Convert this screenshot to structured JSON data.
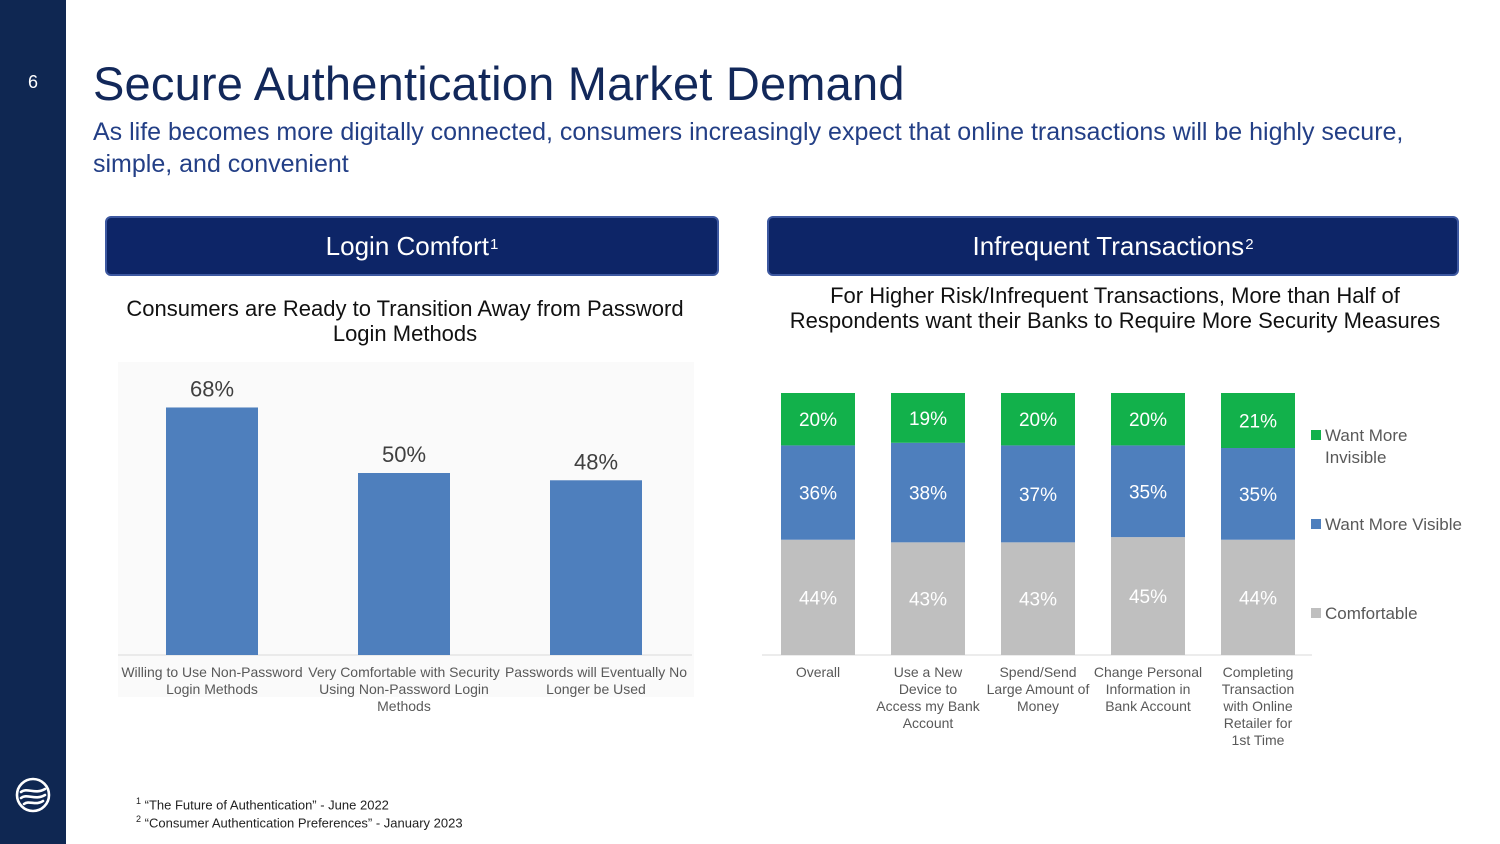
{
  "page_number": "6",
  "title": "Secure Authentication Market Demand",
  "subtitle": "As life becomes more digitally connected, consumers increasingly expect that online transactions will be highly secure, simple, and convenient",
  "left_panel": {
    "header": "Login Comfort",
    "header_sup": "1"
  },
  "right_panel": {
    "header": "Infrequent Transactions",
    "header_sup": "2"
  },
  "chart_data": [
    {
      "type": "bar",
      "title": "Consumers are Ready to Transition Away from Password Login Methods",
      "categories": [
        "Willing to Use Non-Password Login Methods",
        "Very Comfortable with Security Using Non-Password Login Methods",
        "Passwords will Eventually No Longer be Used"
      ],
      "values": [
        68,
        50,
        48
      ],
      "value_labels": [
        "68%",
        "50%",
        "48%"
      ],
      "ylim": [
        0,
        75
      ],
      "xlabel": "",
      "ylabel": "",
      "color": "#4e7fbd"
    },
    {
      "type": "bar",
      "stacked": true,
      "title": "For Higher Risk/Infrequent Transactions, More than Half of Respondents want their Banks to Require More Security Measures",
      "categories": [
        "Overall",
        "Use a New Device to Access my Bank Account",
        "Spend/Send Large Amount of Money",
        "Change Personal Information in Bank Account",
        "Completing Transaction with Online Retailer for 1st Time"
      ],
      "series": [
        {
          "name": "Comfortable",
          "values": [
            44,
            43,
            43,
            45,
            44
          ],
          "labels": [
            "44%",
            "43%",
            "43%",
            "45%",
            "44%"
          ],
          "color": "#bfbfbf"
        },
        {
          "name": "Want More Visible",
          "values": [
            36,
            38,
            37,
            35,
            35
          ],
          "labels": [
            "36%",
            "38%",
            "37%",
            "35%",
            "35%"
          ],
          "color": "#4e7fbd"
        },
        {
          "name": "Want More Invisible",
          "values": [
            20,
            19,
            20,
            20,
            21
          ],
          "labels": [
            "20%",
            "19%",
            "20%",
            "20%",
            "21%"
          ],
          "color": "#12b14b"
        }
      ],
      "legend": "right",
      "ylim": [
        0,
        100
      ]
    }
  ],
  "footnotes": [
    {
      "sup": "1",
      "text": "“The Future of Authentication” - June 2022"
    },
    {
      "sup": "2",
      "text": "“Consumer Authentication Preferences” - January 2023"
    }
  ],
  "colors": {
    "sidebar": "#0f2752",
    "header_bg": "#0d2567",
    "title": "#12285a",
    "subtitle": "#233f86"
  }
}
